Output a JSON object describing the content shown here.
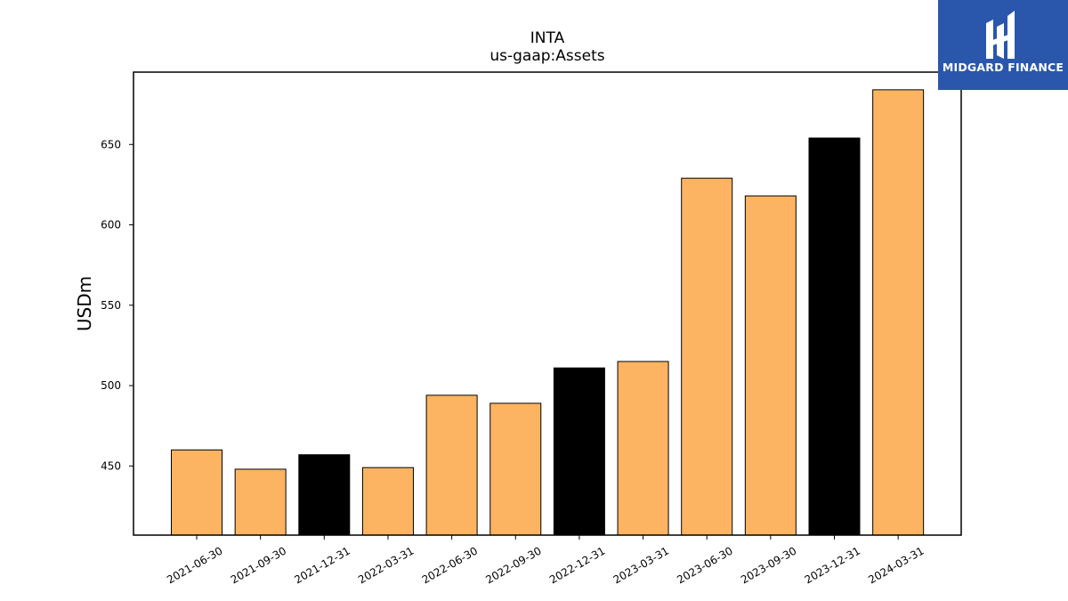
{
  "brand": {
    "name": "MIDGARD FINANCE",
    "bg_color": "#2a57ab"
  },
  "chart_data": {
    "type": "bar",
    "title": "INTA",
    "subtitle": "us-gaap:Assets",
    "xlabel": "",
    "ylabel": "USDm",
    "categories": [
      "2021-06-30",
      "2021-09-30",
      "2021-12-31",
      "2022-03-31",
      "2022-06-30",
      "2022-09-30",
      "2022-12-31",
      "2023-03-31",
      "2023-06-30",
      "2023-09-30",
      "2023-12-31",
      "2024-03-31"
    ],
    "values": [
      460,
      448,
      457,
      449,
      494,
      489,
      511,
      515,
      629,
      618,
      654,
      684
    ],
    "bar_colors": [
      "#fdb462",
      "#fdb462",
      "#000000",
      "#fdb462",
      "#fdb462",
      "#fdb462",
      "#000000",
      "#fdb462",
      "#fdb462",
      "#fdb462",
      "#000000",
      "#fdb462"
    ],
    "ylim": [
      407,
      695
    ],
    "yticks": [
      450,
      500,
      550,
      600,
      650
    ],
    "grid": false,
    "legend": "none"
  }
}
